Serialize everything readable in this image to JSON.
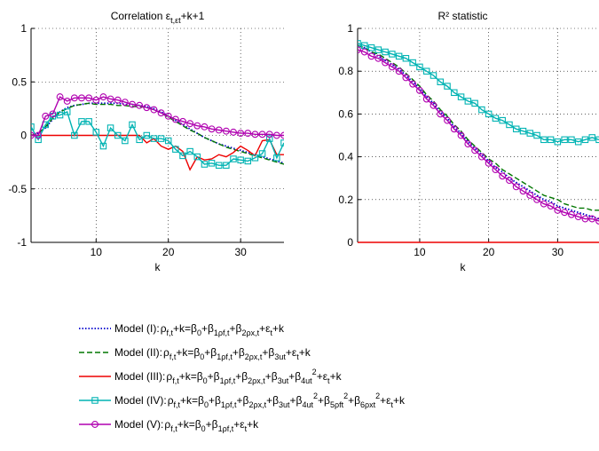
{
  "chart_data": [
    {
      "type": "line",
      "title": "Correlation ε_t,ε_t+k+1",
      "xlabel": "k",
      "ylabel": "",
      "xlim": [
        1,
        36
      ],
      "ylim": [
        -1,
        1
      ],
      "xticks": [
        "10",
        "20",
        "30"
      ],
      "yticks": [
        "-1",
        "-0.5",
        "0",
        "0.5",
        "1"
      ],
      "grid": "dotted",
      "x": [
        1,
        2,
        3,
        4,
        5,
        6,
        7,
        8,
        9,
        10,
        11,
        12,
        13,
        14,
        15,
        16,
        17,
        18,
        19,
        20,
        21,
        22,
        23,
        24,
        25,
        26,
        27,
        28,
        29,
        30,
        31,
        32,
        33,
        34,
        35,
        36
      ],
      "series": [
        {
          "key": "model-1",
          "values": [
            0.0,
            0.02,
            0.07,
            0.15,
            0.22,
            0.26,
            0.28,
            0.29,
            0.3,
            0.3,
            0.3,
            0.3,
            0.3,
            0.29,
            0.29,
            0.28,
            0.27,
            0.25,
            0.22,
            0.18,
            0.14,
            0.1,
            0.06,
            0.02,
            -0.02,
            -0.05,
            -0.08,
            -0.1,
            -0.12,
            -0.14,
            -0.16,
            -0.18,
            -0.2,
            -0.22,
            -0.24,
            -0.26
          ]
        },
        {
          "key": "model-2",
          "values": [
            0.0,
            0.02,
            0.08,
            0.16,
            0.22,
            0.25,
            0.28,
            0.29,
            0.3,
            0.29,
            0.29,
            0.29,
            0.28,
            0.28,
            0.27,
            0.27,
            0.26,
            0.24,
            0.21,
            0.17,
            0.13,
            0.09,
            0.05,
            0.02,
            -0.02,
            -0.05,
            -0.08,
            -0.11,
            -0.13,
            -0.15,
            -0.17,
            -0.19,
            -0.21,
            -0.23,
            -0.25,
            -0.27
          ]
        },
        {
          "key": "model-3",
          "values": [
            0.0,
            0.0,
            0.0,
            0.0,
            0.0,
            0.0,
            0.0,
            0.0,
            0.0,
            0.0,
            0.0,
            0.0,
            0.0,
            0.0,
            0.0,
            0.0,
            -0.07,
            -0.03,
            -0.1,
            -0.13,
            -0.1,
            -0.15,
            -0.32,
            -0.2,
            -0.23,
            -0.22,
            -0.18,
            -0.2,
            -0.16,
            -0.1,
            -0.14,
            -0.19,
            -0.05,
            -0.04,
            -0.18,
            -0.18
          ]
        },
        {
          "key": "model-4",
          "values": [
            0.08,
            -0.04,
            0.1,
            0.18,
            0.19,
            0.22,
            0.0,
            0.13,
            0.13,
            0.03,
            -0.1,
            0.07,
            0.0,
            -0.05,
            0.1,
            -0.04,
            0.0,
            -0.03,
            -0.03,
            -0.05,
            -0.13,
            -0.19,
            -0.15,
            -0.2,
            -0.27,
            -0.26,
            -0.28,
            -0.28,
            -0.22,
            -0.23,
            -0.24,
            -0.21,
            -0.17,
            -0.03,
            -0.21,
            -0.07
          ]
        },
        {
          "key": "model-5",
          "values": [
            0.0,
            0.0,
            0.18,
            0.2,
            0.36,
            0.32,
            0.35,
            0.35,
            0.35,
            0.33,
            0.36,
            0.34,
            0.33,
            0.31,
            0.29,
            0.28,
            0.26,
            0.24,
            0.21,
            0.18,
            0.15,
            0.13,
            0.11,
            0.09,
            0.08,
            0.06,
            0.05,
            0.04,
            0.03,
            0.02,
            0.02,
            0.01,
            0.01,
            0.01,
            0.0,
            0.0
          ]
        }
      ]
    },
    {
      "type": "line",
      "title": "R² statistic",
      "xlabel": "k",
      "ylabel": "",
      "xlim": [
        1,
        36
      ],
      "ylim": [
        0,
        1
      ],
      "xticks": [
        "10",
        "20",
        "30"
      ],
      "yticks": [
        "0",
        "0.2",
        "0.4",
        "0.6",
        "0.8",
        "1"
      ],
      "grid": "dotted",
      "x": [
        1,
        2,
        3,
        4,
        5,
        6,
        7,
        8,
        9,
        10,
        11,
        12,
        13,
        14,
        15,
        16,
        17,
        18,
        19,
        20,
        21,
        22,
        23,
        24,
        25,
        26,
        27,
        28,
        29,
        30,
        31,
        32,
        33,
        34,
        35,
        36
      ],
      "series": [
        {
          "key": "model-1",
          "values": [
            0.92,
            0.91,
            0.89,
            0.87,
            0.85,
            0.83,
            0.81,
            0.78,
            0.75,
            0.72,
            0.68,
            0.65,
            0.61,
            0.58,
            0.54,
            0.51,
            0.47,
            0.44,
            0.41,
            0.38,
            0.35,
            0.33,
            0.3,
            0.28,
            0.26,
            0.24,
            0.22,
            0.2,
            0.19,
            0.17,
            0.16,
            0.15,
            0.14,
            0.13,
            0.12,
            0.11
          ]
        },
        {
          "key": "model-2",
          "values": [
            0.92,
            0.91,
            0.89,
            0.88,
            0.86,
            0.84,
            0.82,
            0.79,
            0.76,
            0.73,
            0.69,
            0.66,
            0.62,
            0.59,
            0.55,
            0.52,
            0.48,
            0.45,
            0.42,
            0.39,
            0.37,
            0.34,
            0.32,
            0.3,
            0.28,
            0.26,
            0.24,
            0.22,
            0.21,
            0.2,
            0.18,
            0.17,
            0.16,
            0.16,
            0.15,
            0.15
          ]
        },
        {
          "key": "model-3",
          "values": [
            0.0,
            0.0,
            0.0,
            0.0,
            0.0,
            0.0,
            0.0,
            0.0,
            0.0,
            0.0,
            0.0,
            0.0,
            0.0,
            0.0,
            0.0,
            0.0,
            0.0,
            0.0,
            0.0,
            0.0,
            0.0,
            0.0,
            0.0,
            0.0,
            0.0,
            0.0,
            0.0,
            0.0,
            0.0,
            0.0,
            0.0,
            0.0,
            0.0,
            0.0,
            0.0,
            0.0
          ]
        },
        {
          "key": "model-4",
          "values": [
            0.93,
            0.92,
            0.91,
            0.9,
            0.89,
            0.88,
            0.87,
            0.86,
            0.84,
            0.82,
            0.8,
            0.78,
            0.75,
            0.73,
            0.7,
            0.68,
            0.66,
            0.65,
            0.62,
            0.6,
            0.58,
            0.57,
            0.55,
            0.53,
            0.52,
            0.51,
            0.5,
            0.48,
            0.48,
            0.47,
            0.48,
            0.48,
            0.47,
            0.48,
            0.49,
            0.48
          ]
        },
        {
          "key": "model-5",
          "values": [
            0.9,
            0.89,
            0.87,
            0.86,
            0.84,
            0.82,
            0.8,
            0.77,
            0.74,
            0.71,
            0.67,
            0.64,
            0.6,
            0.57,
            0.53,
            0.5,
            0.46,
            0.43,
            0.4,
            0.37,
            0.34,
            0.31,
            0.29,
            0.26,
            0.24,
            0.22,
            0.2,
            0.18,
            0.17,
            0.15,
            0.14,
            0.13,
            0.12,
            0.11,
            0.11,
            0.1
          ]
        }
      ]
    }
  ],
  "legend": {
    "placement": "bottom-center",
    "entries": [
      {
        "key": "model-1",
        "name": "Model (I)",
        "formula": "ρ_f,t+k=β_0+β_1ρ_f,t+β_2ρ_x,t+ε_t+k",
        "color": "#0000cc",
        "dash": "dotted",
        "marker": "none"
      },
      {
        "key": "model-2",
        "name": "Model (II)",
        "formula": "ρ_f,t+k=β_0+β_1ρ_f,t+β_2ρ_x,t+β_3u_t+ε_t+k",
        "color": "#007700",
        "dash": "dashed",
        "marker": "none"
      },
      {
        "key": "model-3",
        "name": "Model (III)",
        "formula": "ρ_f,t+k=β_0+β_1ρ_f,t+β_2ρ_x,t+β_3u_t+β_4u_t^2+ε_t+k",
        "color": "#ee0000",
        "dash": "solid",
        "marker": "none"
      },
      {
        "key": "model-4",
        "name": "Model (IV)",
        "formula": "ρ_f,t+k=β_0+β_1ρ_f,t+β_2ρ_x,t+β_3u_t+β_4u_t^2+β_5ρ_ft^2+β_6ρ_xt^2+ε_t+k",
        "color": "#00b3b3",
        "dash": "solid",
        "marker": "square"
      },
      {
        "key": "model-5",
        "name": "Model (V)",
        "formula": "ρ_f,t+k=β_0+β_1ρ_f,t+ε_t+k",
        "color": "#b000b0",
        "dash": "solid",
        "marker": "circle"
      }
    ]
  }
}
